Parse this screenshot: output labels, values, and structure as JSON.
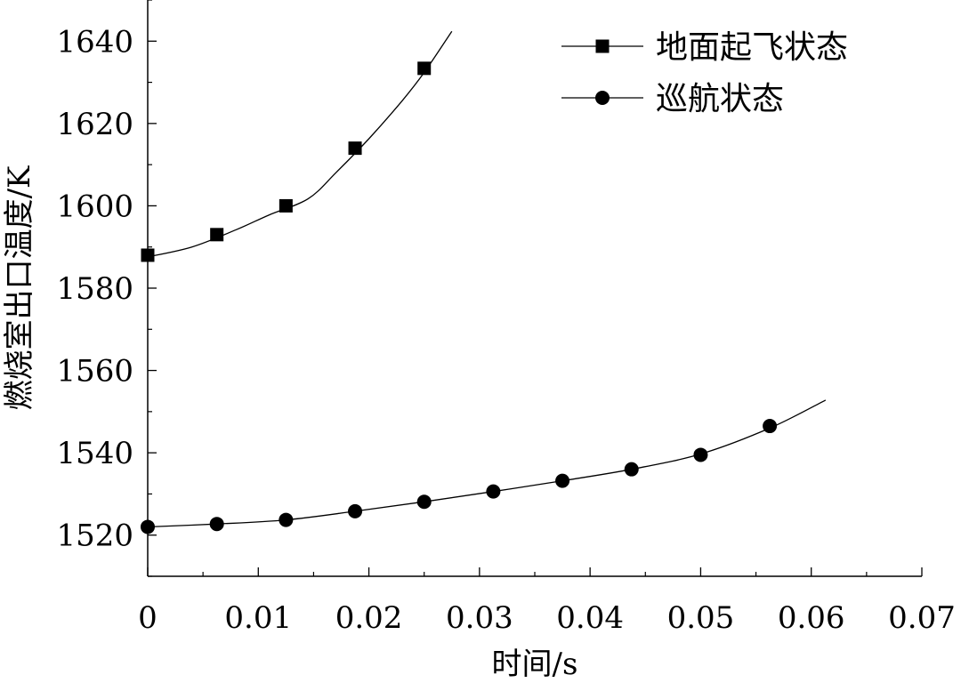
{
  "chart_data": {
    "type": "line",
    "xlabel": "时间/s",
    "ylabel": "燃烧室出口温度/K",
    "xlim": [
      0,
      0.07
    ],
    "ylim": [
      1510,
      1650
    ],
    "x_ticks": [
      0,
      0.01,
      0.02,
      0.03,
      0.04,
      0.05,
      0.06,
      0.07
    ],
    "x_tick_labels": [
      "0",
      "0.01",
      "0.02",
      "0.03",
      "0.04",
      "0.05",
      "0.06",
      "0.07"
    ],
    "y_ticks": [
      1520,
      1540,
      1560,
      1580,
      1600,
      1620,
      1640
    ],
    "y_tick_labels": [
      "1520",
      "1540",
      "1560",
      "1580",
      "1600",
      "1620",
      "1640"
    ],
    "grid": false,
    "legend_position": "top-right",
    "series": [
      {
        "name": "地面起飞状态",
        "marker": "square",
        "color": "#000000",
        "points": [
          {
            "x": 0,
            "y": 1588
          },
          {
            "x": 0.00625,
            "y": 1593
          },
          {
            "x": 0.0125,
            "y": 1600
          },
          {
            "x": 0.01875,
            "y": 1614
          },
          {
            "x": 0.025,
            "y": 1633.4
          }
        ],
        "curve": [
          {
            "x": 0,
            "y": 1587.6
          },
          {
            "x": 0.004,
            "y": 1590
          },
          {
            "x": 0.008,
            "y": 1594.2
          },
          {
            "x": 0.011,
            "y": 1597.8
          },
          {
            "x": 0.0145,
            "y": 1601.7
          },
          {
            "x": 0.017,
            "y": 1608
          },
          {
            "x": 0.02,
            "y": 1616.3
          },
          {
            "x": 0.023,
            "y": 1625.5
          },
          {
            "x": 0.025,
            "y": 1632.4
          },
          {
            "x": 0.0275,
            "y": 1642.4
          }
        ]
      },
      {
        "name": "巡航状态",
        "marker": "circle",
        "color": "#000000",
        "points": [
          {
            "x": 0,
            "y": 1522
          },
          {
            "x": 0.00625,
            "y": 1522.7
          },
          {
            "x": 0.0125,
            "y": 1523.7
          },
          {
            "x": 0.01875,
            "y": 1525.8
          },
          {
            "x": 0.025,
            "y": 1528.1
          },
          {
            "x": 0.03125,
            "y": 1530.6
          },
          {
            "x": 0.0375,
            "y": 1533.2
          },
          {
            "x": 0.04375,
            "y": 1536
          },
          {
            "x": 0.05,
            "y": 1539.5
          },
          {
            "x": 0.05625,
            "y": 1546.5
          }
        ],
        "curve": [
          {
            "x": 0,
            "y": 1522
          },
          {
            "x": 0.00625,
            "y": 1522.7
          },
          {
            "x": 0.0125,
            "y": 1523.7
          },
          {
            "x": 0.01875,
            "y": 1525.8
          },
          {
            "x": 0.025,
            "y": 1528.1
          },
          {
            "x": 0.03125,
            "y": 1530.6
          },
          {
            "x": 0.0375,
            "y": 1533.2
          },
          {
            "x": 0.04375,
            "y": 1536
          },
          {
            "x": 0.05,
            "y": 1539.7
          },
          {
            "x": 0.05625,
            "y": 1546
          },
          {
            "x": 0.0613,
            "y": 1552.8
          }
        ]
      }
    ]
  }
}
